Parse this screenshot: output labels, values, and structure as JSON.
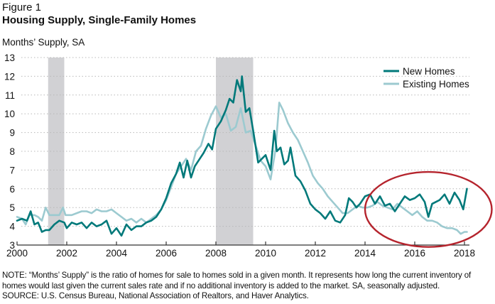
{
  "figure_label": "Figure 1",
  "title": "Housing Supply, Single-Family Homes",
  "y_axis_title": "Months’ Supply, SA",
  "notes": [
    "NOTE: “Months’ Supply” is the ratio of homes for sale to homes sold in a given month. It represents how long the current inventory of",
    "homes would last given the current sales rate and if no additional inventory is added to the market. SA, seasonally adjusted.",
    "SOURCE: U.S. Census Bureau, National Association of Realtors, and Haver Analytics."
  ],
  "colors": {
    "new_homes": "#00797a",
    "existing_homes": "#9ccad0",
    "recession": "#d1d1d4",
    "highlight_ellipse": "#b5242d",
    "grid": "#b8b8b8",
    "axis": "#333333"
  },
  "chart_data": {
    "type": "line",
    "title": "Housing Supply, Single-Family Homes",
    "xlabel": "",
    "ylabel": "Months’ Supply, SA",
    "xlim": [
      2000,
      2018.3
    ],
    "ylim": [
      3,
      13
    ],
    "x_ticks": [
      2000,
      2002,
      2004,
      2006,
      2008,
      2010,
      2012,
      2014,
      2016,
      2018
    ],
    "x_tick_labels": [
      "2000",
      "2002",
      "2004",
      "2006",
      "2008",
      "2010",
      "2012",
      "2014",
      "2016",
      "2018"
    ],
    "y_ticks": [
      3,
      4,
      5,
      6,
      7,
      8,
      9,
      10,
      11,
      12,
      13
    ],
    "y_tick_labels": [
      "3",
      "4",
      "5",
      "6",
      "7",
      "8",
      "9",
      "10",
      "11",
      "12",
      "13"
    ],
    "grid": "horizontal-dotted",
    "legend_position": "top-right",
    "recessions": [
      [
        2001.25,
        2001.9
      ],
      [
        2008.0,
        2009.5
      ]
    ],
    "annotation": {
      "type": "ellipse",
      "x_range": [
        2014.0,
        2019.1
      ],
      "y_range": [
        2.9,
        6.9
      ],
      "label": ""
    },
    "series": [
      {
        "name": "New Homes",
        "x": [
          2000.0,
          2000.2,
          2000.4,
          2000.55,
          2000.7,
          2000.85,
          2001.0,
          2001.15,
          2001.3,
          2001.5,
          2001.7,
          2001.9,
          2002.0,
          2002.2,
          2002.4,
          2002.6,
          2002.8,
          2003.0,
          2003.2,
          2003.4,
          2003.6,
          2003.8,
          2004.0,
          2004.2,
          2004.4,
          2004.6,
          2004.8,
          2005.0,
          2005.2,
          2005.4,
          2005.6,
          2005.8,
          2006.0,
          2006.2,
          2006.4,
          2006.55,
          2006.7,
          2006.85,
          2007.0,
          2007.15,
          2007.3,
          2007.5,
          2007.7,
          2007.85,
          2008.0,
          2008.2,
          2008.4,
          2008.55,
          2008.7,
          2008.85,
          2009.0,
          2009.05,
          2009.2,
          2009.35,
          2009.5,
          2009.7,
          2009.85,
          2010.0,
          2010.2,
          2010.35,
          2010.45,
          2010.6,
          2010.75,
          2010.9,
          2011.0,
          2011.2,
          2011.4,
          2011.6,
          2011.8,
          2012.0,
          2012.2,
          2012.4,
          2012.6,
          2012.8,
          2013.0,
          2013.2,
          2013.35,
          2013.5,
          2013.65,
          2013.8,
          2014.0,
          2014.2,
          2014.4,
          2014.6,
          2014.8,
          2015.0,
          2015.2,
          2015.4,
          2015.6,
          2015.8,
          2016.0,
          2016.2,
          2016.4,
          2016.55,
          2016.7,
          2016.85,
          2017.0,
          2017.2,
          2017.4,
          2017.6,
          2017.8,
          2017.95,
          2018.1
        ],
        "values": [
          4.3,
          4.4,
          4.3,
          4.8,
          4.1,
          4.2,
          3.7,
          3.8,
          3.8,
          4.1,
          4.3,
          4.2,
          3.9,
          4.2,
          4.1,
          4.2,
          3.9,
          4.2,
          4.0,
          4.1,
          4.3,
          3.6,
          3.9,
          3.5,
          4.1,
          3.8,
          4.0,
          4.0,
          4.2,
          4.3,
          4.5,
          4.9,
          5.5,
          6.3,
          6.8,
          7.4,
          6.6,
          7.5,
          6.6,
          7.2,
          7.5,
          7.9,
          8.4,
          8.1,
          9.2,
          9.6,
          10.2,
          10.8,
          10.6,
          11.8,
          11.2,
          12.0,
          10.1,
          10.3,
          9.1,
          7.4,
          7.6,
          7.8,
          7.0,
          9.1,
          8.0,
          8.2,
          7.3,
          7.5,
          8.2,
          6.7,
          6.4,
          5.9,
          5.2,
          4.9,
          4.7,
          4.4,
          4.8,
          4.3,
          4.2,
          4.6,
          5.5,
          5.3,
          5.0,
          5.2,
          5.6,
          5.7,
          5.2,
          5.6,
          5.1,
          5.2,
          4.8,
          5.2,
          5.6,
          5.4,
          5.5,
          5.7,
          5.3,
          4.5,
          5.2,
          5.3,
          5.4,
          5.7,
          5.2,
          5.8,
          5.4,
          4.9,
          6.0
        ]
      },
      {
        "name": "Existing Homes",
        "x": [
          2000.0,
          2000.2,
          2000.35,
          2000.5,
          2000.7,
          2000.85,
          2001.0,
          2001.15,
          2001.3,
          2001.5,
          2001.7,
          2001.85,
          2001.95,
          2002.2,
          2002.4,
          2002.6,
          2002.8,
          2003.0,
          2003.2,
          2003.4,
          2003.6,
          2003.8,
          2004.0,
          2004.2,
          2004.4,
          2004.6,
          2004.8,
          2005.0,
          2005.2,
          2005.4,
          2005.6,
          2005.8,
          2006.0,
          2006.2,
          2006.4,
          2006.6,
          2006.8,
          2007.0,
          2007.2,
          2007.4,
          2007.6,
          2007.8,
          2008.0,
          2008.2,
          2008.4,
          2008.6,
          2008.8,
          2009.0,
          2009.2,
          2009.4,
          2009.6,
          2009.8,
          2010.0,
          2010.2,
          2010.4,
          2010.55,
          2010.7,
          2010.9,
          2011.1,
          2011.3,
          2011.5,
          2011.7,
          2011.9,
          2012.1,
          2012.3,
          2012.5,
          2012.7,
          2012.9,
          2013.1,
          2013.3,
          2013.5,
          2013.7,
          2013.9,
          2014.1,
          2014.3,
          2014.5,
          2014.7,
          2014.9,
          2015.1,
          2015.3,
          2015.5,
          2015.7,
          2015.9,
          2016.1,
          2016.3,
          2016.5,
          2016.7,
          2016.9,
          2017.1,
          2017.3,
          2017.5,
          2017.7,
          2017.85,
          2018.0,
          2018.1
        ],
        "values": [
          4.5,
          4.4,
          4.1,
          4.6,
          4.6,
          4.5,
          4.3,
          5.0,
          4.6,
          4.6,
          4.6,
          5.0,
          4.6,
          4.6,
          4.7,
          4.8,
          4.8,
          4.7,
          4.9,
          4.8,
          4.8,
          4.9,
          4.7,
          4.5,
          4.3,
          4.4,
          4.2,
          4.4,
          4.2,
          4.4,
          4.6,
          4.9,
          5.4,
          6.1,
          6.8,
          7.2,
          7.6,
          7.0,
          8.0,
          8.3,
          9.2,
          9.9,
          10.4,
          9.8,
          10.0,
          9.1,
          9.3,
          10.3,
          9.0,
          9.1,
          8.3,
          7.5,
          7.2,
          6.5,
          8.1,
          10.6,
          10.2,
          9.5,
          9.0,
          8.6,
          8.0,
          7.4,
          6.7,
          6.3,
          6.0,
          5.6,
          5.3,
          5.0,
          4.7,
          4.7,
          4.9,
          5.1,
          5.0,
          5.0,
          5.1,
          5.3,
          5.1,
          5.0,
          4.9,
          5.2,
          5.0,
          4.8,
          4.6,
          4.8,
          4.5,
          4.3,
          4.3,
          4.2,
          4.0,
          3.9,
          3.9,
          3.8,
          3.6,
          3.7,
          3.7
        ]
      }
    ]
  }
}
